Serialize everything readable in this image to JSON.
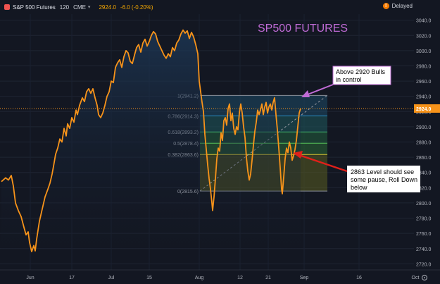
{
  "header": {
    "symbol": "S&P 500 Futures",
    "interval": "120",
    "exchange": "CME",
    "last": "2924.0",
    "change": "-6.0 (-0.20%)",
    "delayed": "Delayed"
  },
  "colors": {
    "background": "#131722",
    "price_line": "#f7931a",
    "last_price_line": "#f7931a",
    "annotation_purple": "#c06bd6",
    "arrow_red": "#e0201a",
    "fib_fill_top": "#1f4f6e",
    "fib_fill_green": "#2e6b3a",
    "fib_fill_bottom": "#6b6a1e"
  },
  "title_overlay": "SP500 FUTURES",
  "annotations": {
    "bulls": "Above 2920 Bulls in control",
    "bulls_lines": [
      "Above 2920 Bulls",
      "in control"
    ],
    "level": "2863 Level should see some pause, Roll Down below",
    "level_lines": [
      "2863 Level should see",
      "some pause, Roll Down",
      "below"
    ]
  },
  "price_axis": {
    "ticks": [
      3040,
      3020,
      3000,
      2980,
      2960,
      2940,
      2920,
      2900,
      2880,
      2860,
      2840,
      2820,
      2800,
      2780,
      2760,
      2740,
      2720
    ],
    "tick_labels": [
      "3040.0",
      "3020.0",
      "3000.0",
      "2980.0",
      "2960.0",
      "2940.0",
      "2920.0",
      "2900.0",
      "2880.0",
      "2860.0",
      "2840.0",
      "2820.0",
      "2800.0",
      "2780.0",
      "2760.0",
      "2740.0",
      "2720.0"
    ],
    "last_price_label": "2924.0",
    "ylim": [
      2712,
      3048
    ]
  },
  "time_axis": {
    "labels": [
      "Jun",
      "17",
      "Jul",
      "15",
      "Aug",
      "12",
      "21",
      "Sep",
      "16",
      "Oct"
    ]
  },
  "fib_levels": [
    {
      "ratio_label": "1(2941.2)",
      "price": 2941.2
    },
    {
      "ratio_label": "0.786(2914.3)",
      "price": 2914.3
    },
    {
      "ratio_label": "0.618(2893.2)",
      "price": 2893.2
    },
    {
      "ratio_label": "0.5(2878.4)",
      "price": 2878.4
    },
    {
      "ratio_label": "0.382(2863.6)",
      "price": 2863.6
    },
    {
      "ratio_label": "0(2815.6)",
      "price": 2815.6
    }
  ],
  "price_series": [
    [
      0,
      2828
    ],
    [
      6,
      2833
    ],
    [
      10,
      2830
    ],
    [
      14,
      2836
    ],
    [
      17,
      2822
    ],
    [
      20,
      2800
    ],
    [
      24,
      2790
    ],
    [
      28,
      2782
    ],
    [
      32,
      2768
    ],
    [
      35,
      2758
    ],
    [
      38,
      2762
    ],
    [
      40,
      2748
    ],
    [
      43,
      2736
    ],
    [
      46,
      2744
    ],
    [
      48,
      2737
    ],
    [
      50,
      2752
    ],
    [
      54,
      2776
    ],
    [
      58,
      2792
    ],
    [
      62,
      2808
    ],
    [
      66,
      2818
    ],
    [
      69,
      2826
    ],
    [
      72,
      2838
    ],
    [
      74,
      2848
    ],
    [
      77,
      2864
    ],
    [
      80,
      2872
    ],
    [
      83,
      2884
    ],
    [
      86,
      2880
    ],
    [
      89,
      2898
    ],
    [
      92,
      2888
    ],
    [
      94,
      2904
    ],
    [
      97,
      2898
    ],
    [
      100,
      2912
    ],
    [
      103,
      2906
    ],
    [
      106,
      2922
    ],
    [
      108,
      2916
    ],
    [
      111,
      2928
    ],
    [
      115,
      2938
    ],
    [
      118,
      2933
    ],
    [
      121,
      2946
    ],
    [
      124,
      2950
    ],
    [
      127,
      2944
    ],
    [
      130,
      2950
    ],
    [
      133,
      2938
    ],
    [
      136,
      2928
    ],
    [
      138,
      2916
    ],
    [
      141,
      2912
    ],
    [
      144,
      2918
    ],
    [
      147,
      2928
    ],
    [
      150,
      2940
    ],
    [
      153,
      2946
    ],
    [
      156,
      2960
    ],
    [
      159,
      2958
    ],
    [
      162,
      2978
    ],
    [
      165,
      2984
    ],
    [
      168,
      2988
    ],
    [
      171,
      2978
    ],
    [
      174,
      2992
    ],
    [
      177,
      3000
    ],
    [
      180,
      2997
    ],
    [
      183,
      2986
    ],
    [
      186,
      2983
    ],
    [
      189,
      2994
    ],
    [
      192,
      3004
    ],
    [
      195,
      3008
    ],
    [
      198,
      2998
    ],
    [
      201,
      3010
    ],
    [
      204,
      3015
    ],
    [
      207,
      3006
    ],
    [
      210,
      3012
    ],
    [
      213,
      3020
    ],
    [
      216,
      3025
    ],
    [
      219,
      3022
    ],
    [
      222,
      3012
    ],
    [
      225,
      3006
    ],
    [
      228,
      3000
    ],
    [
      231,
      2994
    ],
    [
      234,
      2990
    ],
    [
      237,
      2996
    ],
    [
      240,
      2992
    ],
    [
      243,
      3004
    ],
    [
      246,
      3000
    ],
    [
      249,
      3010
    ],
    [
      252,
      3014
    ],
    [
      255,
      3022
    ],
    [
      258,
      3027
    ],
    [
      261,
      3023
    ],
    [
      264,
      3026
    ],
    [
      267,
      3016
    ],
    [
      270,
      3024
    ],
    [
      273,
      3018
    ],
    [
      276,
      3008
    ],
    [
      279,
      2996
    ],
    [
      281,
      2960
    ],
    [
      283,
      2946
    ],
    [
      285,
      2932
    ],
    [
      287,
      2920
    ],
    [
      289,
      2890
    ],
    [
      291,
      2870
    ],
    [
      293,
      2850
    ],
    [
      295,
      2832
    ],
    [
      297,
      2818
    ],
    [
      299,
      2800
    ],
    [
      300,
      2790
    ],
    [
      302,
      2808
    ],
    [
      304,
      2832
    ],
    [
      306,
      2858
    ],
    [
      308,
      2872
    ],
    [
      310,
      2868
    ],
    [
      312,
      2892
    ],
    [
      314,
      2882
    ],
    [
      316,
      2908
    ],
    [
      318,
      2912
    ],
    [
      320,
      2902
    ],
    [
      322,
      2924
    ],
    [
      324,
      2930
    ],
    [
      326,
      2908
    ],
    [
      328,
      2918
    ],
    [
      330,
      2898
    ],
    [
      332,
      2890
    ],
    [
      334,
      2900
    ],
    [
      336,
      2896
    ],
    [
      338,
      2918
    ],
    [
      340,
      2930
    ],
    [
      342,
      2918
    ],
    [
      344,
      2900
    ],
    [
      346,
      2886
    ],
    [
      348,
      2860
    ],
    [
      350,
      2842
    ],
    [
      352,
      2830
    ],
    [
      354,
      2838
    ],
    [
      356,
      2856
    ],
    [
      358,
      2876
    ],
    [
      360,
      2894
    ],
    [
      362,
      2906
    ],
    [
      364,
      2922
    ],
    [
      366,
      2916
    ],
    [
      368,
      2922
    ],
    [
      370,
      2930
    ],
    [
      372,
      2916
    ],
    [
      374,
      2926
    ],
    [
      376,
      2932
    ],
    [
      378,
      2918
    ],
    [
      380,
      2926
    ],
    [
      382,
      2930
    ],
    [
      384,
      2922
    ],
    [
      386,
      2932
    ],
    [
      388,
      2938
    ],
    [
      390,
      2916
    ],
    [
      392,
      2896
    ],
    [
      394,
      2872
    ],
    [
      396,
      2846
    ],
    [
      398,
      2818
    ],
    [
      399,
      2812
    ],
    [
      401,
      2834
    ],
    [
      403,
      2858
    ],
    [
      405,
      2872
    ],
    [
      407,
      2866
    ],
    [
      409,
      2880
    ],
    [
      411,
      2872
    ],
    [
      413,
      2856
    ],
    [
      415,
      2862
    ],
    [
      417,
      2870
    ],
    [
      419,
      2882
    ],
    [
      421,
      2900
    ],
    [
      423,
      2918
    ],
    [
      425,
      2924
    ]
  ]
}
